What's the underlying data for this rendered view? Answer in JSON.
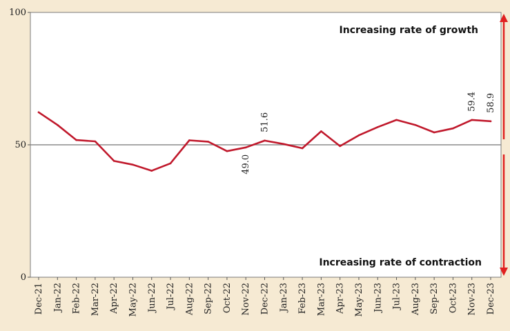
{
  "chart_data": {
    "type": "line",
    "categories": [
      "Dec-21",
      "Jan-22",
      "Feb-22",
      "Mar-22",
      "Apr-22",
      "May-22",
      "Jun-22",
      "Jul-22",
      "Aug-22",
      "Sep-22",
      "Oct-22",
      "Nov-22",
      "Dec-22",
      "Jan-23",
      "Feb-23",
      "Mar-23",
      "Apr-23",
      "May-23",
      "Jun-23",
      "Jul-23",
      "Aug-23",
      "Sep-23",
      "Oct-23",
      "Nov-23",
      "Dec-23"
    ],
    "values": [
      62.3,
      57.5,
      51.8,
      51.3,
      43.9,
      42.5,
      40.2,
      43.0,
      51.7,
      51.2,
      47.6,
      49.0,
      51.6,
      50.3,
      48.7,
      55.1,
      49.5,
      53.6,
      56.7,
      59.4,
      57.5,
      54.7,
      56.2,
      59.4,
      58.9
    ],
    "ylim": [
      0,
      100
    ],
    "yticks": [
      "0",
      "50",
      "100"
    ],
    "reference_line": 50,
    "data_labels": [
      {
        "category": "Nov-22",
        "text": "49.0"
      },
      {
        "category": "Dec-22",
        "text": "51.6"
      },
      {
        "category": "Nov-23",
        "text": "59.4"
      },
      {
        "category": "Dec-23",
        "text": "58.9"
      }
    ],
    "annotations": {
      "growth": "Increasing rate of growth",
      "contraction": "Increasing rate of contraction"
    },
    "colors": {
      "line": "#c0182b",
      "arrow": "#e02020",
      "plot_bg": "#ffffff",
      "page_bg": "#f6ead3",
      "reference": "#8c8c8c"
    },
    "legend": "none",
    "grid": false
  }
}
